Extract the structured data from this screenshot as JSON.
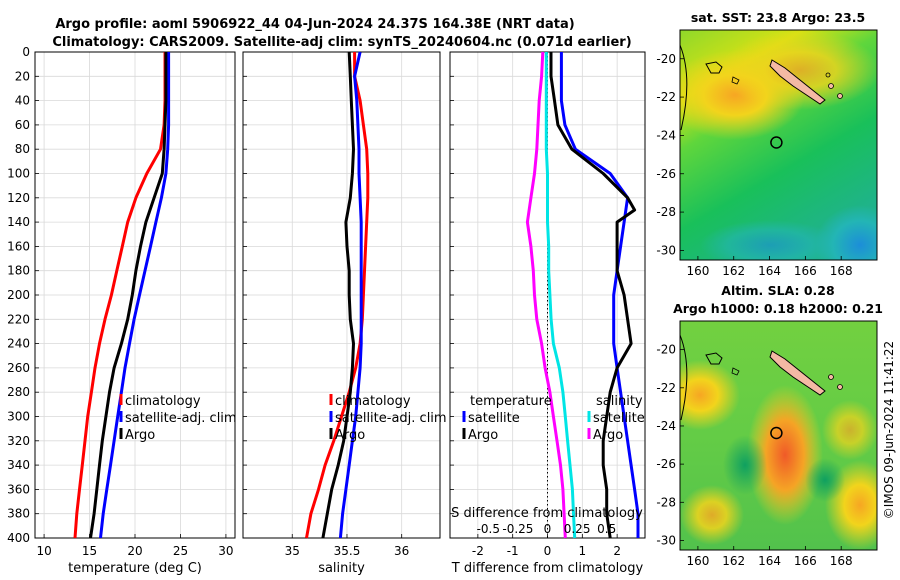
{
  "header": {
    "title_line1": "Argo profile: aoml 5906922_44 04-Jun-2024 24.37S 164.38E (NRT data)",
    "title_line2": "Climatology: CARS2009. Satellite-adj clim: synTS_20240604.nc (0.071d earlier)"
  },
  "colors": {
    "climatology": "#ff0000",
    "satellite": "#0000ff",
    "argo": "#000000",
    "temp_diff_argo": "#000000",
    "sal_diff_argo": "#ff00ff",
    "sal_diff_sat": "#00e5e5",
    "land": "#f4b9a4"
  },
  "chart_data": [
    {
      "id": "temperature",
      "type": "line",
      "xlabel": "temperature (deg C)",
      "ylabel": "",
      "xlim": [
        9,
        31
      ],
      "ylim": [
        0,
        400
      ],
      "xticks": [
        10,
        15,
        20,
        25,
        30
      ],
      "yticks": [
        0,
        20,
        40,
        60,
        80,
        100,
        120,
        140,
        160,
        180,
        200,
        220,
        240,
        260,
        280,
        300,
        320,
        340,
        360,
        380,
        400
      ],
      "legend": [
        "climatology",
        "satellite-adj. clim",
        "Argo"
      ],
      "series": [
        {
          "name": "climatology",
          "color": "#ff0000",
          "points": [
            [
              23.3,
              0
            ],
            [
              23.3,
              20
            ],
            [
              23.3,
              40
            ],
            [
              23.2,
              60
            ],
            [
              22.8,
              80
            ],
            [
              21.3,
              100
            ],
            [
              20.1,
              120
            ],
            [
              19.2,
              140
            ],
            [
              18.6,
              160
            ],
            [
              18.0,
              180
            ],
            [
              17.4,
              200
            ],
            [
              16.7,
              220
            ],
            [
              16.1,
              240
            ],
            [
              15.6,
              260
            ],
            [
              15.2,
              280
            ],
            [
              14.8,
              300
            ],
            [
              14.5,
              320
            ],
            [
              14.2,
              340
            ],
            [
              13.9,
              360
            ],
            [
              13.6,
              380
            ],
            [
              13.4,
              400
            ]
          ]
        },
        {
          "name": "satellite-adj. clim",
          "color": "#0000ff",
          "points": [
            [
              23.7,
              0
            ],
            [
              23.7,
              20
            ],
            [
              23.7,
              40
            ],
            [
              23.7,
              60
            ],
            [
              23.6,
              80
            ],
            [
              23.4,
              100
            ],
            [
              22.9,
              120
            ],
            [
              22.3,
              140
            ],
            [
              21.7,
              160
            ],
            [
              21.1,
              180
            ],
            [
              20.5,
              200
            ],
            [
              19.9,
              220
            ],
            [
              19.4,
              240
            ],
            [
              18.9,
              260
            ],
            [
              18.5,
              280
            ],
            [
              18.1,
              300
            ],
            [
              17.7,
              320
            ],
            [
              17.3,
              340
            ],
            [
              16.9,
              360
            ],
            [
              16.5,
              380
            ],
            [
              16.2,
              400
            ]
          ]
        },
        {
          "name": "Argo",
          "color": "#000000",
          "points": [
            [
              23.4,
              0
            ],
            [
              23.4,
              20
            ],
            [
              23.4,
              40
            ],
            [
              23.3,
              60
            ],
            [
              23.2,
              80
            ],
            [
              23.0,
              100
            ],
            [
              22.1,
              120
            ],
            [
              21.2,
              140
            ],
            [
              20.6,
              160
            ],
            [
              20.1,
              180
            ],
            [
              19.7,
              200
            ],
            [
              19.2,
              220
            ],
            [
              18.5,
              240
            ],
            [
              17.7,
              260
            ],
            [
              17.2,
              280
            ],
            [
              16.8,
              300
            ],
            [
              16.4,
              320
            ],
            [
              16.1,
              340
            ],
            [
              15.8,
              360
            ],
            [
              15.5,
              380
            ],
            [
              15.1,
              400
            ]
          ]
        }
      ]
    },
    {
      "id": "salinity",
      "type": "line",
      "xlabel": "salinity",
      "ylabel": "",
      "xlim": [
        34.55,
        36.35
      ],
      "ylim": [
        0,
        400
      ],
      "xticks": [
        35,
        35.5,
        36
      ],
      "legend": [
        "climatology",
        "satellite-adj. clim",
        "Argo"
      ],
      "series": [
        {
          "name": "climatology",
          "color": "#ff0000",
          "points": [
            [
              35.57,
              0
            ],
            [
              35.57,
              20
            ],
            [
              35.62,
              40
            ],
            [
              35.65,
              60
            ],
            [
              35.68,
              80
            ],
            [
              35.69,
              100
            ],
            [
              35.69,
              120
            ],
            [
              35.68,
              140
            ],
            [
              35.67,
              160
            ],
            [
              35.66,
              180
            ],
            [
              35.65,
              200
            ],
            [
              35.64,
              220
            ],
            [
              35.62,
              240
            ],
            [
              35.58,
              260
            ],
            [
              35.52,
              280
            ],
            [
              35.45,
              300
            ],
            [
              35.38,
              320
            ],
            [
              35.3,
              340
            ],
            [
              35.24,
              360
            ],
            [
              35.17,
              380
            ],
            [
              35.13,
              400
            ]
          ]
        },
        {
          "name": "satellite-adj. clim",
          "color": "#0000ff",
          "points": [
            [
              35.62,
              0
            ],
            [
              35.57,
              20
            ],
            [
              35.59,
              40
            ],
            [
              35.6,
              60
            ],
            [
              35.61,
              80
            ],
            [
              35.61,
              100
            ],
            [
              35.62,
              120
            ],
            [
              35.63,
              140
            ],
            [
              35.63,
              160
            ],
            [
              35.63,
              180
            ],
            [
              35.63,
              200
            ],
            [
              35.63,
              220
            ],
            [
              35.63,
              240
            ],
            [
              35.62,
              260
            ],
            [
              35.6,
              280
            ],
            [
              35.58,
              300
            ],
            [
              35.55,
              320
            ],
            [
              35.52,
              340
            ],
            [
              35.49,
              360
            ],
            [
              35.46,
              380
            ],
            [
              35.44,
              400
            ]
          ]
        },
        {
          "name": "Argo",
          "color": "#000000",
          "points": [
            [
              35.52,
              0
            ],
            [
              35.53,
              20
            ],
            [
              35.54,
              40
            ],
            [
              35.55,
              60
            ],
            [
              35.56,
              80
            ],
            [
              35.55,
              100
            ],
            [
              35.53,
              120
            ],
            [
              35.49,
              140
            ],
            [
              35.5,
              160
            ],
            [
              35.52,
              180
            ],
            [
              35.52,
              200
            ],
            [
              35.53,
              220
            ],
            [
              35.56,
              240
            ],
            [
              35.55,
              260
            ],
            [
              35.53,
              280
            ],
            [
              35.5,
              300
            ],
            [
              35.47,
              320
            ],
            [
              35.42,
              340
            ],
            [
              35.36,
              360
            ],
            [
              35.32,
              380
            ],
            [
              35.28,
              400
            ]
          ]
        }
      ]
    },
    {
      "id": "difference",
      "type": "line",
      "xlabel": "T difference from climatology",
      "xlabel2": "S difference from climatology",
      "ylabel": "",
      "xlim": [
        -2.8,
        2.8
      ],
      "ylim": [
        0,
        400
      ],
      "xticks": [
        -2,
        -1,
        0,
        1,
        2
      ],
      "xticks2": [
        "-0.5",
        "-0.25",
        "0",
        "0.25",
        "0.5"
      ],
      "legend_temperature_title": "temperature",
      "legend_salinity_title": "salinity",
      "legend": [
        "satellite",
        "Argo"
      ],
      "series": [
        {
          "name": "temperature satellite",
          "color": "#0000ff",
          "points": [
            [
              0.4,
              0
            ],
            [
              0.4,
              20
            ],
            [
              0.4,
              40
            ],
            [
              0.5,
              60
            ],
            [
              0.8,
              80
            ],
            [
              1.8,
              100
            ],
            [
              2.3,
              120
            ],
            [
              2.2,
              140
            ],
            [
              2.1,
              160
            ],
            [
              2.0,
              180
            ],
            [
              1.9,
              200
            ],
            [
              1.9,
              220
            ],
            [
              1.9,
              240
            ],
            [
              2.0,
              260
            ],
            [
              2.1,
              280
            ],
            [
              2.2,
              300
            ],
            [
              2.3,
              320
            ],
            [
              2.4,
              340
            ],
            [
              2.5,
              360
            ],
            [
              2.6,
              380
            ],
            [
              2.6,
              400
            ]
          ]
        },
        {
          "name": "temperature Argo",
          "color": "#000000",
          "points": [
            [
              0.1,
              0
            ],
            [
              0.1,
              20
            ],
            [
              0.2,
              40
            ],
            [
              0.3,
              60
            ],
            [
              0.7,
              80
            ],
            [
              1.6,
              100
            ],
            [
              2.3,
              120
            ],
            [
              2.5,
              130
            ],
            [
              2.0,
              140
            ],
            [
              2.0,
              160
            ],
            [
              2.0,
              180
            ],
            [
              2.2,
              200
            ],
            [
              2.3,
              220
            ],
            [
              2.4,
              240
            ],
            [
              2.0,
              260
            ],
            [
              1.8,
              280
            ],
            [
              1.7,
              300
            ],
            [
              1.6,
              320
            ],
            [
              1.6,
              340
            ],
            [
              1.7,
              360
            ],
            [
              1.7,
              380
            ],
            [
              1.8,
              400
            ]
          ]
        },
        {
          "name": "salinity satellite",
          "color": "#00e5e5",
          "points": [
            [
              -0.01,
              0
            ],
            [
              -0.01,
              20
            ],
            [
              -0.01,
              40
            ],
            [
              -0.01,
              60
            ],
            [
              -0.01,
              80
            ],
            [
              0.0,
              100
            ],
            [
              0.0,
              120
            ],
            [
              0.0,
              140
            ],
            [
              0.01,
              160
            ],
            [
              0.01,
              180
            ],
            [
              0.02,
              200
            ],
            [
              0.03,
              220
            ],
            [
              0.05,
              240
            ],
            [
              0.1,
              260
            ],
            [
              0.13,
              280
            ],
            [
              0.15,
              300
            ],
            [
              0.17,
              320
            ],
            [
              0.19,
              340
            ],
            [
              0.21,
              360
            ],
            [
              0.22,
              380
            ],
            [
              0.23,
              400
            ]
          ]
        },
        {
          "name": "salinity Argo",
          "color": "#ff00ff",
          "points": [
            [
              -0.04,
              0
            ],
            [
              -0.05,
              20
            ],
            [
              -0.07,
              40
            ],
            [
              -0.08,
              60
            ],
            [
              -0.09,
              80
            ],
            [
              -0.11,
              100
            ],
            [
              -0.14,
              120
            ],
            [
              -0.17,
              140
            ],
            [
              -0.14,
              160
            ],
            [
              -0.12,
              180
            ],
            [
              -0.11,
              200
            ],
            [
              -0.09,
              220
            ],
            [
              -0.05,
              240
            ],
            [
              -0.02,
              260
            ],
            [
              0.02,
              280
            ],
            [
              0.05,
              300
            ],
            [
              0.08,
              320
            ],
            [
              0.11,
              340
            ],
            [
              0.13,
              360
            ],
            [
              0.14,
              380
            ],
            [
              0.15,
              400
            ]
          ]
        }
      ]
    },
    {
      "id": "sst_map",
      "type": "heatmap",
      "title": "sat. SST: 23.8 Argo: 23.5",
      "xlim": [
        159,
        170
      ],
      "ylim": [
        -30.5,
        -18.5
      ],
      "xticks": [
        160,
        162,
        164,
        166,
        168
      ],
      "yticks": [
        -20,
        -22,
        -24,
        -26,
        -28,
        -30
      ],
      "profile_location": [
        164.38,
        -24.37
      ]
    },
    {
      "id": "sla_map",
      "type": "heatmap",
      "title_line1": "Altim. SLA: 0.28",
      "title_line2": "Argo h1000: 0.18 h2000: 0.21",
      "xlim": [
        159,
        170
      ],
      "ylim": [
        -30.5,
        -18.5
      ],
      "xticks": [
        160,
        162,
        164,
        166,
        168
      ],
      "yticks": [
        -20,
        -22,
        -24,
        -26,
        -28,
        -30
      ],
      "profile_location": [
        164.38,
        -24.37
      ]
    }
  ],
  "credit": "©IMOS 09-Jun-2024 11:41:22"
}
